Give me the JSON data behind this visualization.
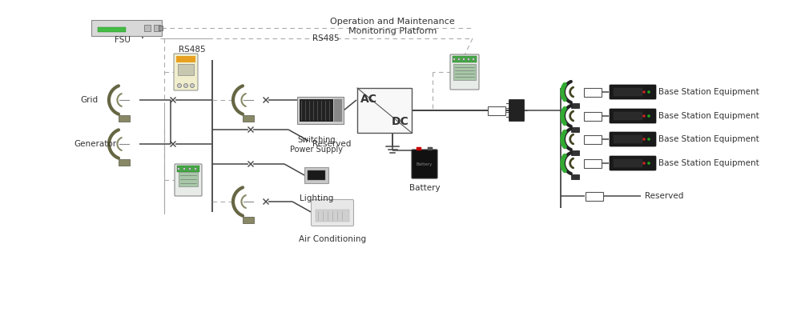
{
  "bg_color": "#ffffff",
  "line_color": "#444444",
  "dashed_color": "#aaaaaa",
  "text_color": "#333333",
  "label_fontsize": 7.5,
  "figsize": [
    10,
    4.2
  ],
  "dpi": 100,
  "elements": {
    "fsu_label": "FSU",
    "rs485_left": "RS485",
    "rs485_right": "RS485",
    "op_platform": "Operation and Maintenance\nMonitoring Platform",
    "grid_label": "Grid",
    "generator_label": "Generator",
    "switching_ps": "Switching\nPower Supply",
    "ac_label": "AC",
    "dc_label": "DC",
    "reserved_left": "Reserved",
    "lighting_label": "Lighting",
    "aircon_label": "Air Conditioning",
    "battery_label": "Battery",
    "reserved_right": "Reserved",
    "base_station": "Base Station Equipment"
  }
}
